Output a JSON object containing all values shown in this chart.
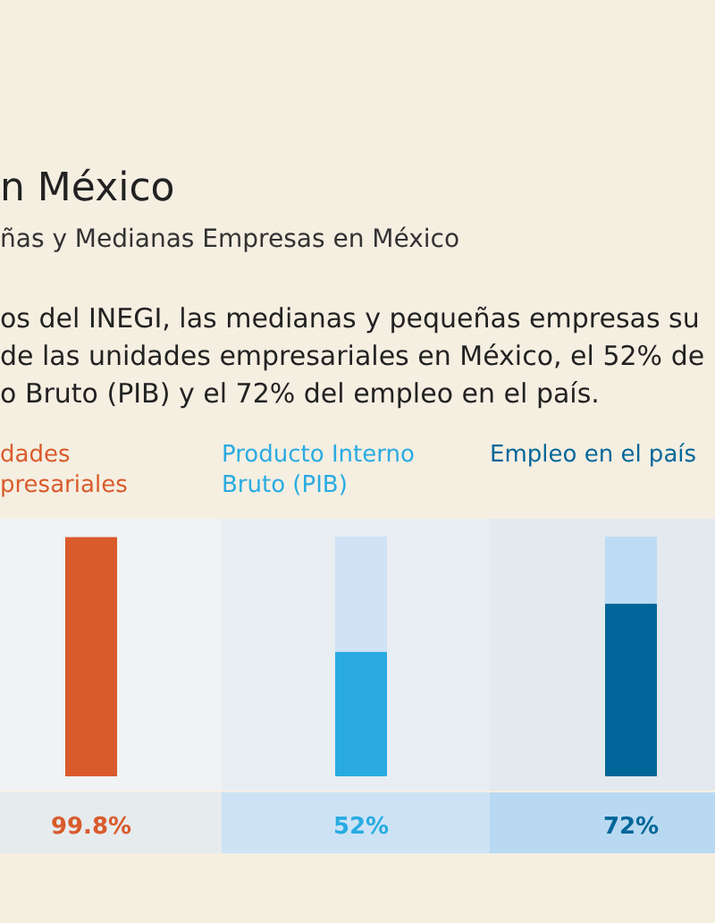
{
  "chart_data": {
    "type": "bar",
    "title": "n México",
    "subtitle": "ñas y Medianas Empresas en México",
    "annotations": [
      "os del INEGI, las medianas y pequeñas empresas su",
      "de las unidades empresariales en México, el 52% de",
      "o Bruto (PIB) y el 72% del empleo en el país."
    ],
    "categories": [
      "dades\npresariales",
      "Producto Interno\nBruto (PIB)",
      "Empleo en el país"
    ],
    "stacked": true,
    "series": [
      {
        "colors": [
          "#d95a2b",
          "#29abe2",
          "#006699"
        ],
        "values": [
          99.8,
          52,
          72
        ],
        "value_labels": [
          "99.8%",
          "52%",
          "72%"
        ]
      },
      {
        "colors": [
          null,
          "#cfe3f5",
          "#bddcf3"
        ],
        "values": [
          null,
          48,
          28
        ]
      }
    ]
  }
}
